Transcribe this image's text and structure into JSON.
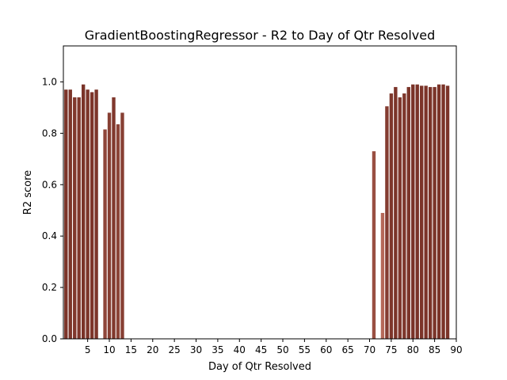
{
  "chart_data": {
    "type": "bar",
    "title": "GradientBoostingRegressor - R2 to Day of Qtr Resolved",
    "xlabel": "Day of Qtr Resolved",
    "ylabel": "R2 score",
    "xlim": [
      -0.6,
      90
    ],
    "ylim": [
      0,
      1.14
    ],
    "xticks": [
      5,
      10,
      15,
      20,
      25,
      30,
      35,
      40,
      45,
      50,
      55,
      60,
      65,
      70,
      75,
      80,
      85,
      90
    ],
    "yticks": [
      0.0,
      0.2,
      0.4,
      0.6,
      0.8,
      1.0
    ],
    "ytick_labels": [
      "0.0",
      "0.2",
      "0.4",
      "0.6",
      "0.8",
      "1.0"
    ],
    "grid": false,
    "legend": "none",
    "color_light": "#b5695a",
    "color_dark": "#7a3328",
    "x": [
      0,
      1,
      2,
      3,
      4,
      5,
      6,
      7,
      9,
      10,
      11,
      12,
      13,
      71,
      73,
      74,
      75,
      76,
      77,
      78,
      79,
      80,
      81,
      82,
      83,
      84,
      85,
      86,
      87,
      88
    ],
    "values": [
      0.97,
      0.97,
      0.94,
      0.94,
      0.99,
      0.97,
      0.96,
      0.97,
      0.815,
      0.88,
      0.94,
      0.835,
      0.88,
      0.73,
      0.49,
      0.905,
      0.955,
      0.98,
      0.94,
      0.955,
      0.98,
      0.99,
      0.99,
      0.985,
      0.985,
      0.98,
      0.98,
      0.99,
      0.99,
      0.985
    ]
  }
}
